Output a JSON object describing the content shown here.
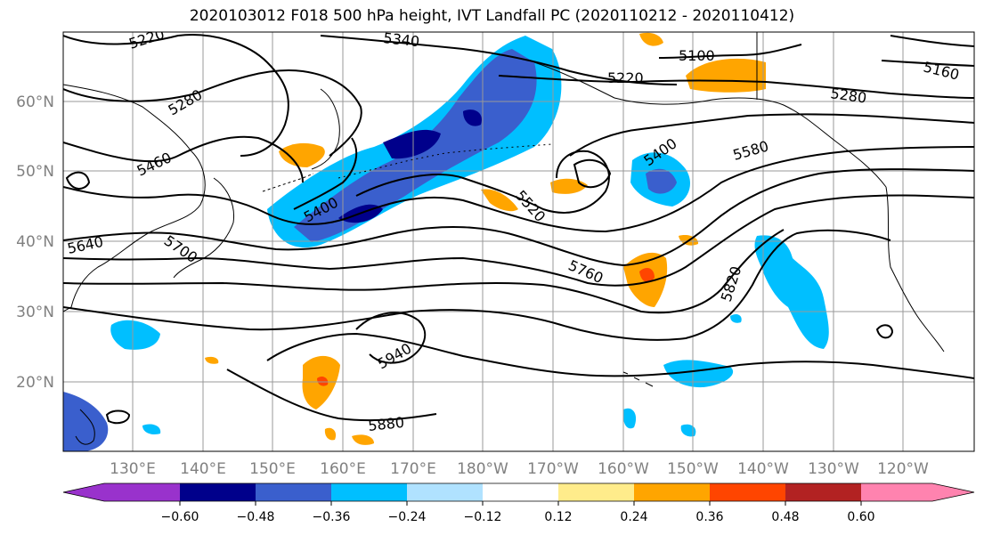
{
  "title": "2020103012 F018 500 hPa height, IVT Landfall PC (2020110212 - 2020110412)",
  "lat_labels": [
    "60°N",
    "50°N",
    "40°N",
    "30°N",
    "20°N"
  ],
  "lon_labels": [
    "130°E",
    "140°E",
    "150°E",
    "160°E",
    "170°E",
    "180°W",
    "170°W",
    "160°W",
    "150°W",
    "140°W",
    "130°W",
    "120°W"
  ],
  "contour_labels": [
    "5220",
    "5340",
    "5100",
    "5160",
    "5280",
    "5220",
    "5460",
    "5400",
    "5580",
    "5280",
    "5400",
    "5520",
    "5640",
    "5700",
    "5760",
    "5820",
    "5940",
    "5880"
  ],
  "colorbar": {
    "ticks": [
      "−0.60",
      "−0.48",
      "−0.36",
      "−0.24",
      "−0.12",
      "0.12",
      "0.24",
      "0.36",
      "0.48",
      "0.60"
    ],
    "colors": [
      "#9932cc",
      "#00008b",
      "#3a5fcd",
      "#00bfff",
      "#b0e2ff",
      "#ffffff",
      "#ffec8b",
      "#ffa500",
      "#ff4500",
      "#b22222",
      "#ff83af"
    ]
  },
  "colors": {
    "contour": "#000000",
    "grid": "#999999",
    "coast": "#000000",
    "axis_label": "#808080"
  }
}
